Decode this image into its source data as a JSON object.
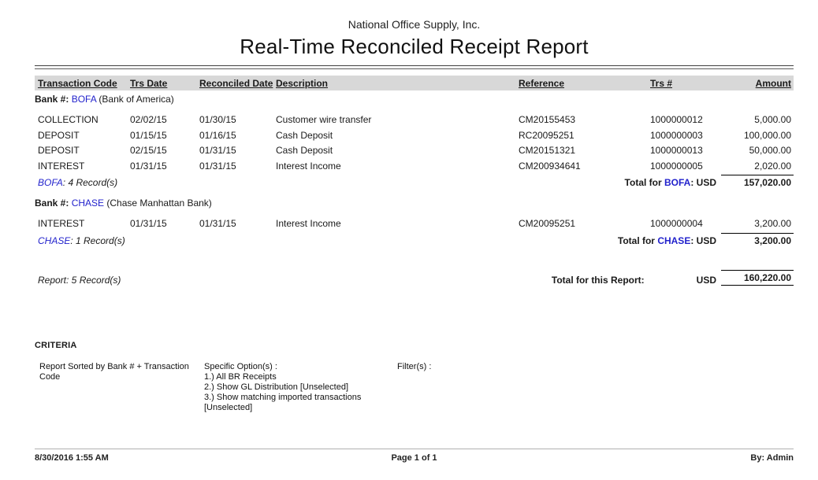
{
  "header": {
    "company": "National Office Supply, Inc.",
    "title": "Real-Time Reconciled Receipt Report"
  },
  "colors": {
    "accent_blue": "#2222cc",
    "header_bar_gray": "#d8d8d8"
  },
  "table": {
    "columns": [
      "Transaction Code",
      "Trs Date",
      "Reconciled Date",
      "Description",
      "Reference",
      "Trs #",
      "Amount"
    ],
    "groups": [
      {
        "bank_label": "Bank #:",
        "bank_code": "BOFA",
        "bank_name": "(Bank of America)",
        "rows": [
          {
            "transaction_code": "COLLECTION",
            "trs_date": "02/02/15",
            "reconciled_date": "01/30/15",
            "description": "Customer wire transfer",
            "reference": "CM20155453",
            "trs_no": "1000000012",
            "amount": "5,000.00"
          },
          {
            "transaction_code": "DEPOSIT",
            "trs_date": "01/15/15",
            "reconciled_date": "01/16/15",
            "description": "Cash Deposit",
            "reference": "RC20095251",
            "trs_no": "1000000003",
            "amount": "100,000.00"
          },
          {
            "transaction_code": "DEPOSIT",
            "trs_date": "02/15/15",
            "reconciled_date": "01/31/15",
            "description": "Cash Deposit",
            "reference": "CM20151321",
            "trs_no": "1000000013",
            "amount": "50,000.00"
          },
          {
            "transaction_code": "INTEREST",
            "trs_date": "01/31/15",
            "reconciled_date": "01/31/15",
            "description": "Interest Income",
            "reference": "CM200934641",
            "trs_no": "1000000005",
            "amount": "2,020.00"
          }
        ],
        "record_count_code": "BOFA",
        "record_count_text": ": 4 Record(s)",
        "total_prefix": "Total for ",
        "total_code": "BOFA",
        "total_suffix": ": USD",
        "total_amount": "157,020.00"
      },
      {
        "bank_label": "Bank #:",
        "bank_code": "CHASE",
        "bank_name": "(Chase Manhattan Bank)",
        "rows": [
          {
            "transaction_code": "INTEREST",
            "trs_date": "01/31/15",
            "reconciled_date": "01/31/15",
            "description": "Interest Income",
            "reference": "CM20095251",
            "trs_no": "1000000004",
            "amount": "3,200.00"
          }
        ],
        "record_count_code": "CHASE",
        "record_count_text": ": 1 Record(s)",
        "total_prefix": "Total for ",
        "total_code": "CHASE",
        "total_suffix": ": USD",
        "total_amount": "3,200.00"
      }
    ],
    "report_summary": {
      "record_count": "Report: 5 Record(s)",
      "total_label": "Total for this Report:",
      "currency": "USD",
      "total_amount": "160,220.00"
    }
  },
  "criteria": {
    "heading": "CRITERIA",
    "sort_text": "Report Sorted by Bank # + Transaction Code",
    "options_label": "Specific Option(s) :",
    "options": [
      "1.) All BR Receipts",
      "2.) Show GL Distribution [Unselected]",
      "3.) Show matching imported transactions [Unselected]"
    ],
    "filters_label": "Filter(s) :"
  },
  "footer": {
    "datetime": "8/30/2016 1:55 AM",
    "page": "Page 1 of 1",
    "by": "By: Admin"
  }
}
